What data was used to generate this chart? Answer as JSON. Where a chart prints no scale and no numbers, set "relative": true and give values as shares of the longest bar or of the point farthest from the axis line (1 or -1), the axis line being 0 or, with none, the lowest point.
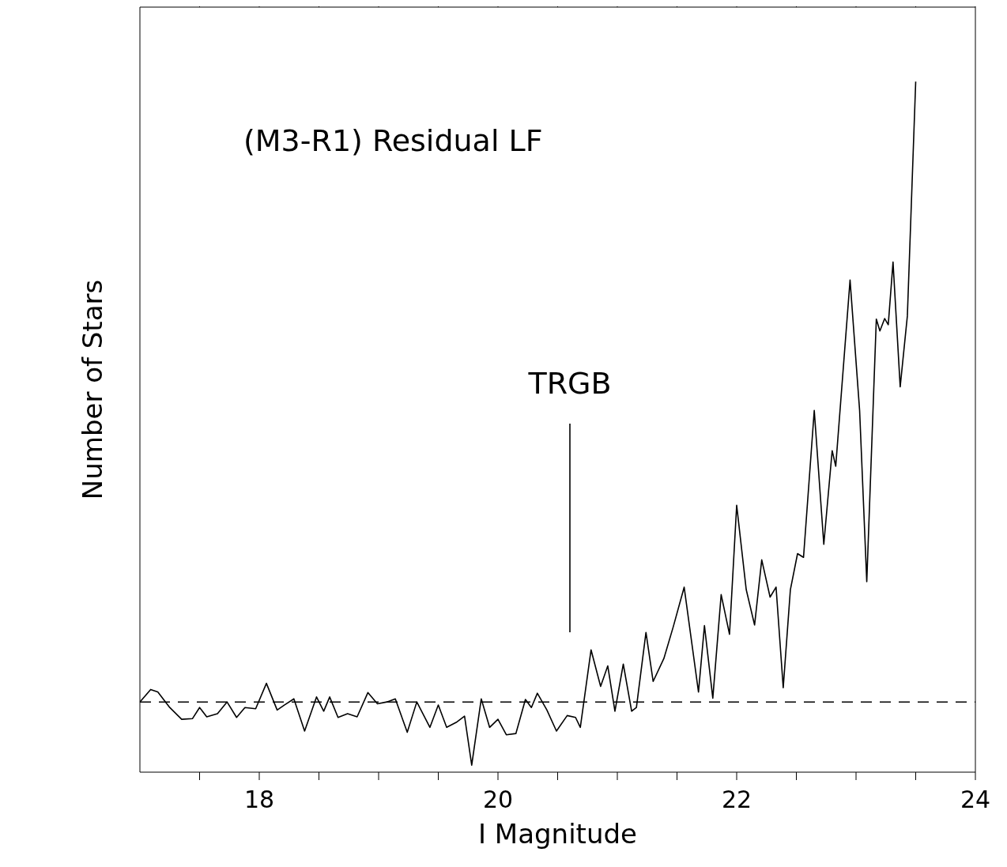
{
  "chart_data": {
    "type": "line",
    "title": "(M3-R1) Residual LF",
    "xlabel": "I Magnitude",
    "ylabel": "Number of Stars",
    "relative": true,
    "x": [
      17.0,
      17.09,
      17.15,
      17.25,
      17.35,
      17.44,
      17.5,
      17.56,
      17.65,
      17.73,
      17.81,
      17.88,
      17.97,
      18.06,
      18.15,
      18.21,
      18.29,
      18.38,
      18.48,
      18.54,
      18.59,
      18.66,
      18.74,
      18.82,
      18.91,
      18.99,
      19.07,
      19.14,
      19.24,
      19.32,
      19.43,
      19.5,
      19.57,
      19.65,
      19.72,
      19.78,
      19.86,
      19.93,
      20.0,
      20.07,
      20.15,
      20.23,
      20.28,
      20.33,
      20.41,
      20.49,
      20.58,
      20.65,
      20.69,
      20.78,
      20.86,
      20.92,
      20.98,
      21.05,
      21.12,
      21.16,
      21.24,
      21.3,
      21.39,
      21.47,
      21.56,
      21.68,
      21.73,
      21.8,
      21.87,
      21.94,
      22.0,
      22.08,
      22.15,
      22.21,
      22.28,
      22.33,
      22.39,
      22.45,
      22.51,
      22.56,
      22.65,
      22.73,
      22.8,
      22.83,
      22.95,
      23.03,
      23.09,
      23.17,
      23.2,
      23.24,
      23.27,
      23.31,
      23.37,
      23.43,
      23.46,
      23.5
    ],
    "series": [
      {
        "color": "#000000",
        "values": [
          0,
          0.02,
          0.016,
          -0.009,
          -0.028,
          -0.027,
          -0.009,
          -0.024,
          -0.019,
          0,
          -0.025,
          -0.009,
          -0.011,
          0.03,
          -0.013,
          -0.005,
          0.005,
          -0.047,
          0.008,
          -0.015,
          0.008,
          -0.025,
          -0.019,
          -0.024,
          0.015,
          -0.003,
          0,
          0.005,
          -0.049,
          0,
          -0.041,
          -0.005,
          -0.041,
          -0.033,
          -0.023,
          -0.102,
          0.005,
          -0.041,
          -0.028,
          -0.053,
          -0.051,
          0.004,
          -0.009,
          0.014,
          -0.013,
          -0.047,
          -0.022,
          -0.025,
          -0.041,
          0.084,
          0.025,
          0.058,
          -0.015,
          0.061,
          -0.015,
          -0.009,
          0.112,
          0.033,
          0.07,
          0.122,
          0.185,
          0.016,
          0.123,
          0.006,
          0.173,
          0.109,
          0.317,
          0.181,
          0.124,
          0.229,
          0.169,
          0.185,
          0.023,
          0.181,
          0.239,
          0.233,
          0.47,
          0.254,
          0.405,
          0.38,
          0.68,
          0.47,
          0.194,
          0.617,
          0.598,
          0.618,
          0.608,
          0.709,
          0.508,
          0.622,
          0.784,
          1
        ]
      }
    ],
    "xlim": [
      17,
      24
    ],
    "xticks": [
      {
        "value": 17.5,
        "label": null
      },
      18,
      {
        "value": 18.5,
        "label": null
      },
      {
        "value": 19,
        "label": null
      },
      {
        "value": 19.5,
        "label": null
      },
      20,
      {
        "value": 20.5,
        "label": null
      },
      {
        "value": 21,
        "label": null
      },
      {
        "value": 21.5,
        "label": null
      },
      22,
      {
        "value": 22.5,
        "label": null
      },
      {
        "value": 23,
        "label": null
      },
      {
        "value": 23.5,
        "label": null
      },
      24
    ],
    "tick_labels": "x",
    "ref_lines": [
      {
        "axis": "y",
        "value": 0,
        "color": "#000000",
        "line_style": "dashed"
      }
    ],
    "annotations": [
      "TRGB"
    ],
    "marker": "none",
    "line_style": "solid"
  }
}
